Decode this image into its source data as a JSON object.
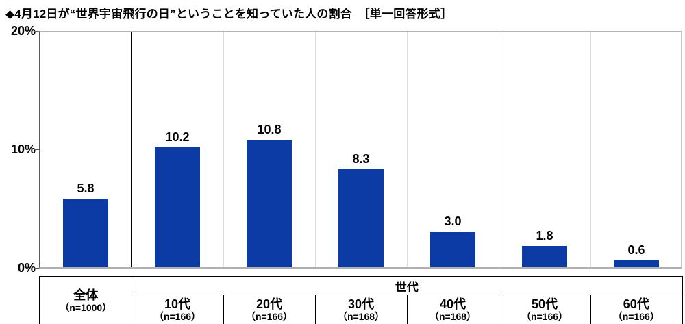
{
  "title": "◆4月12日が“世界宇宙飛行の日”ということを知っていた人の割合　［単一回答形式］",
  "colors": {
    "bar": "#0d3ba6",
    "gridline": "#dcdcdc",
    "axis": "#5a5a5a",
    "divider": "#000000"
  },
  "axis": {
    "yticks": [
      "20%",
      "10%",
      "0%"
    ]
  },
  "chart_data": {
    "type": "bar",
    "title": "4月12日が“世界宇宙飛行の日”ということを知っていた人の割合（単一回答形式）",
    "categories": [
      "全体",
      "10代",
      "20代",
      "30代",
      "40代",
      "50代",
      "60代"
    ],
    "values": [
      5.8,
      10.2,
      10.8,
      8.3,
      3.0,
      1.8,
      0.6
    ],
    "value_labels": [
      "5.8",
      "10.2",
      "10.8",
      "8.3",
      "3.0",
      "1.8",
      "0.6"
    ],
    "xlabel": "",
    "ylabel": "%",
    "ylim": [
      0,
      20
    ],
    "ytick_values": [
      0,
      10,
      20
    ],
    "grid": "vertical-separators-only",
    "legend": "none",
    "bar_color": "#0d3ba6"
  },
  "table": {
    "overall": {
      "label": "全体",
      "n": "（n=1000）"
    },
    "group_header": "世代",
    "columns": [
      {
        "label": "10代",
        "n": "（n=166）"
      },
      {
        "label": "20代",
        "n": "（n=166）"
      },
      {
        "label": "30代",
        "n": "（n=168）"
      },
      {
        "label": "40代",
        "n": "（n=168）"
      },
      {
        "label": "50代",
        "n": "（n=166）"
      },
      {
        "label": "60代",
        "n": "（n=166）"
      }
    ]
  }
}
